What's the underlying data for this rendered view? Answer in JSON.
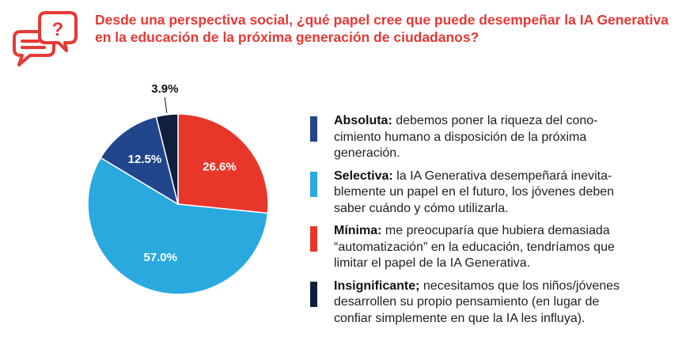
{
  "title_lines": [
    "Desde una perspectiva social, ¿qué papel cree que puede desempeñar la IA Generativa",
    "en la educación de la próxima generación de ciudadanos?"
  ],
  "colors": {
    "title": "#e53935",
    "absoluta": "#21468c",
    "selectiva": "#2aa9df",
    "minima": "#e8362b",
    "insignificante": "#0f1f3d"
  },
  "icons": {
    "header": "chat-question-icon"
  },
  "legend": [
    {
      "name": "Absoluta:",
      "lines": [
        " debemos poner la riqueza del cono-",
        "cimiento humano a disposición de la próxima",
        "generación."
      ]
    },
    {
      "name": "Selectiva:",
      "lines": [
        " la IA Generativa desempeñará inevita-",
        "blemente un papel en el futuro, los jóvenes deben",
        "saber cuándo y cómo utilizarla."
      ]
    },
    {
      "name": "Mínima:",
      "lines": [
        " me preocuparía que hubiera demasiada",
        "“automatización” en la educación, tendríamos que",
        "limitar el papel de la IA Generativa."
      ]
    },
    {
      "name": "Insignificante;",
      "lines": [
        " necesitamos que los niños/jóvenes",
        "desarrollen su propio pensamiento (en lugar de",
        "confiar simplemente en que la IA les influya)."
      ]
    }
  ],
  "chart_data": {
    "type": "pie",
    "slices": [
      {
        "category": "Mínima",
        "value": 26.6,
        "label": "26.6%",
        "color": "#e8362b"
      },
      {
        "category": "Selectiva",
        "value": 57.0,
        "label": "57.0%",
        "color": "#2aa9df"
      },
      {
        "category": "Absoluta",
        "value": 12.5,
        "label": "12.5%",
        "color": "#21468c"
      },
      {
        "category": "Insignificante",
        "value": 3.9,
        "label": "3.9%",
        "color": "#0f1f3d"
      }
    ]
  }
}
